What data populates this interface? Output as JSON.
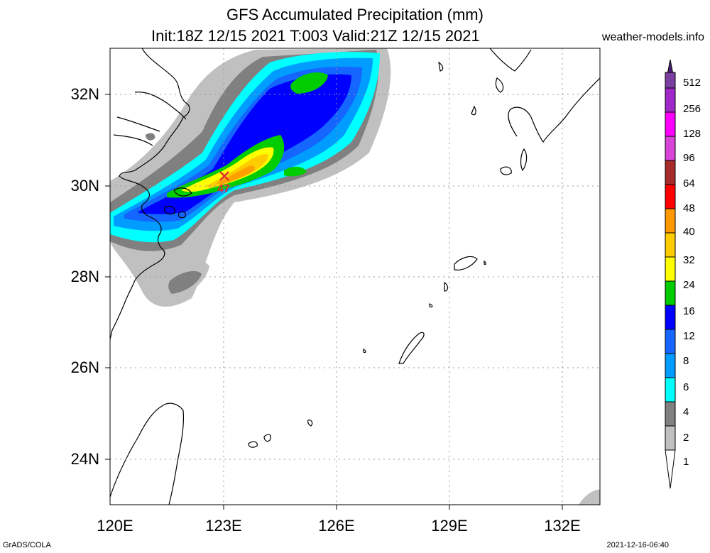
{
  "header": {
    "title": "GFS Accumulated Precipitation (mm)",
    "subtitle": "Init:18Z 12/15 2021 T:003 Valid:21Z 12/15 2021",
    "site": "weather-models.info"
  },
  "axes": {
    "lat_labels": [
      "32N",
      "30N",
      "28N",
      "26N",
      "24N"
    ],
    "lon_labels": [
      "120E",
      "123E",
      "126E",
      "129E",
      "132E"
    ]
  },
  "annotation": {
    "max_value": "47",
    "marker": "×"
  },
  "colorbar": {
    "levels": [
      "512",
      "256",
      "128",
      "96",
      "64",
      "48",
      "40",
      "32",
      "24",
      "16",
      "12",
      "8",
      "6",
      "4",
      "2",
      "1"
    ],
    "colors": [
      "#7a3fa0",
      "#a128c8",
      "#ff00ff",
      "#d844d8",
      "#a52a2a",
      "#ff0000",
      "#ff9900",
      "#ffcc00",
      "#ffff00",
      "#00cc00",
      "#0000ff",
      "#1466ff",
      "#009cff",
      "#00ffff",
      "#808080",
      "#c0c0c0"
    ]
  },
  "footer": {
    "left": "GrADS/COLA",
    "right": "2021-12-16-06:40"
  }
}
